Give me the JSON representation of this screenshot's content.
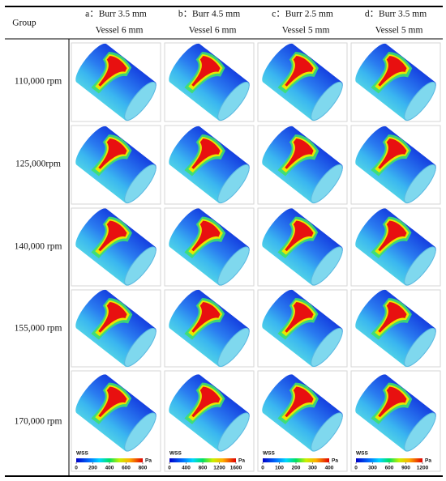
{
  "header": {
    "group": "Group",
    "columns": [
      {
        "label": "a：Burr 3.5 mm",
        "sub": "Vessel 6 mm"
      },
      {
        "label": "b：Burr 4.5 mm",
        "sub": "Vessel 6 mm"
      },
      {
        "label": "c：Burr 2.5 mm",
        "sub": "Vessel 5 mm"
      },
      {
        "label": "d：Burr 3.5 mm",
        "sub": "Vessel 5 mm"
      }
    ]
  },
  "rows": [
    "110,000 rpm",
    "125,000rpm",
    "140,000 rpm",
    "155,000 rpm",
    "170,000 rpm"
  ],
  "colorbars": [
    {
      "title": "WSS",
      "unit": "Pa",
      "ticks": [
        0,
        200,
        400,
        600,
        800
      ]
    },
    {
      "title": "WSS",
      "unit": "Pa",
      "ticks": [
        0,
        400,
        800,
        1200,
        1600
      ]
    },
    {
      "title": "WSS",
      "unit": "Pa",
      "ticks": [
        0,
        100,
        200,
        300,
        400
      ]
    },
    {
      "title": "WSS",
      "unit": "Pa",
      "ticks": [
        0,
        300,
        600,
        900,
        1200
      ]
    }
  ]
}
